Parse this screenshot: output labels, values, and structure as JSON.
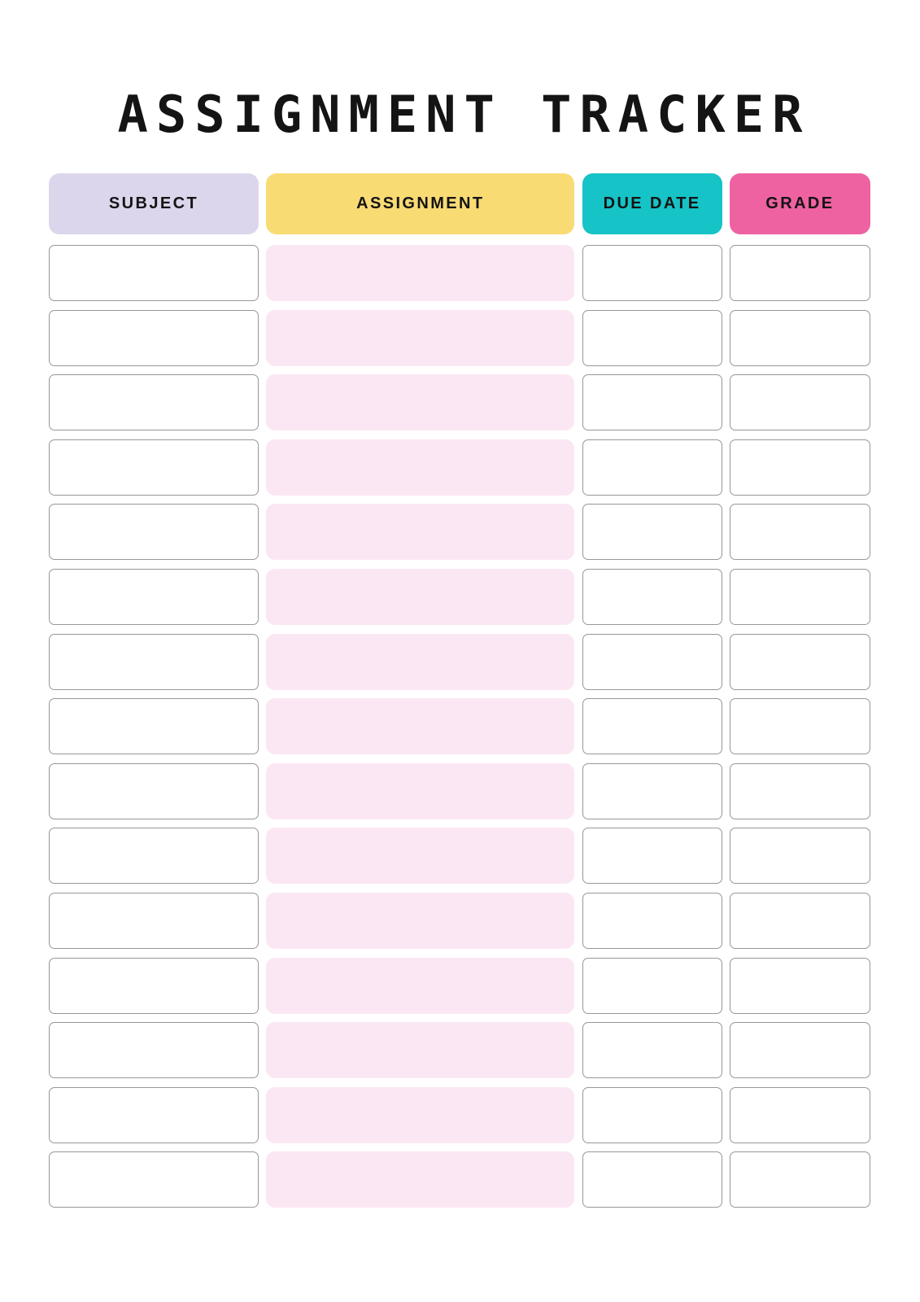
{
  "page": {
    "title": "ASSIGNMENT TRACKER"
  },
  "table": {
    "row_count": 15,
    "columns": [
      {
        "id": "subject",
        "label": "SUBJECT",
        "header_color": "#DCD6EC",
        "cell_style": "outlined"
      },
      {
        "id": "assignment",
        "label": "ASSIGNMENT",
        "header_color": "#F9DB74",
        "cell_style": "filled"
      },
      {
        "id": "due_date",
        "label": "DUE DATE",
        "header_color": "#16C3C7",
        "cell_style": "outlined"
      },
      {
        "id": "grade",
        "label": "GRADE",
        "header_color": "#EF62A2",
        "cell_style": "outlined"
      }
    ],
    "rows": [
      {
        "subject": "",
        "assignment": "",
        "due_date": "",
        "grade": ""
      },
      {
        "subject": "",
        "assignment": "",
        "due_date": "",
        "grade": ""
      },
      {
        "subject": "",
        "assignment": "",
        "due_date": "",
        "grade": ""
      },
      {
        "subject": "",
        "assignment": "",
        "due_date": "",
        "grade": ""
      },
      {
        "subject": "",
        "assignment": "",
        "due_date": "",
        "grade": ""
      },
      {
        "subject": "",
        "assignment": "",
        "due_date": "",
        "grade": ""
      },
      {
        "subject": "",
        "assignment": "",
        "due_date": "",
        "grade": ""
      },
      {
        "subject": "",
        "assignment": "",
        "due_date": "",
        "grade": ""
      },
      {
        "subject": "",
        "assignment": "",
        "due_date": "",
        "grade": ""
      },
      {
        "subject": "",
        "assignment": "",
        "due_date": "",
        "grade": ""
      },
      {
        "subject": "",
        "assignment": "",
        "due_date": "",
        "grade": ""
      },
      {
        "subject": "",
        "assignment": "",
        "due_date": "",
        "grade": ""
      },
      {
        "subject": "",
        "assignment": "",
        "due_date": "",
        "grade": ""
      },
      {
        "subject": "",
        "assignment": "",
        "due_date": "",
        "grade": ""
      },
      {
        "subject": "",
        "assignment": "",
        "due_date": "",
        "grade": ""
      }
    ]
  },
  "colors": {
    "page_background": "#FFFFFF",
    "title_text": "#141414",
    "header_text": "#141414",
    "cell_border": "#97979B",
    "cell_fill": "#FFFFFF",
    "assignment_cell_fill": "#FBE7F3"
  }
}
